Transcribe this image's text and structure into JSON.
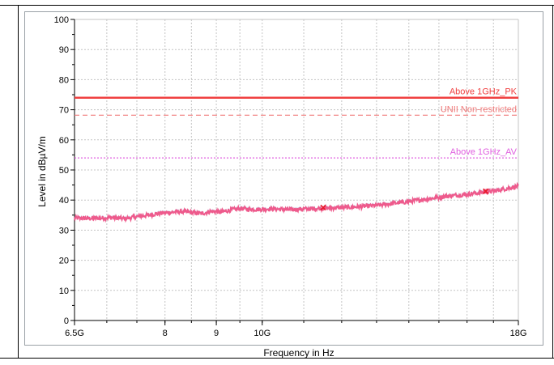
{
  "chart_data": {
    "type": "line",
    "xlabel": "Frequency in Hz",
    "ylabel": "Level in dBµV/m",
    "x_scale": "log",
    "xlim": [
      6.5,
      18
    ],
    "ylim": [
      0,
      100
    ],
    "x_ticks": [
      {
        "value": 6.5,
        "label": "6.5G"
      },
      {
        "value": 8,
        "label": "8"
      },
      {
        "value": 9,
        "label": "9"
      },
      {
        "value": 10,
        "label": "10G"
      },
      {
        "value": 18,
        "label": "18G"
      }
    ],
    "y_ticks": [
      0,
      10,
      20,
      30,
      40,
      50,
      60,
      70,
      80,
      90,
      100
    ],
    "grid": true,
    "limit_lines": [
      {
        "name": "Above 1GHz_PK",
        "value": 74,
        "style": "solid",
        "color": "#f04040"
      },
      {
        "name": "UNII Non-restricted",
        "value": 68.2,
        "style": "dashed",
        "color": "#f07878"
      },
      {
        "name": "Above 1GHz_AV",
        "value": 54,
        "style": "dotted",
        "color": "#e060e0"
      }
    ],
    "series": [
      {
        "color": "#ee5a8c",
        "x": [
          6.5,
          6.7,
          6.9,
          7.1,
          7.3,
          7.5,
          7.7,
          7.9,
          8.1,
          8.3,
          8.5,
          8.7,
          8.9,
          9.1,
          9.3,
          9.5,
          9.7,
          9.9,
          10.2,
          10.6,
          11.0,
          11.5,
          12.0,
          12.5,
          13.0,
          13.5,
          14.0,
          14.5,
          15.0,
          15.5,
          16.0,
          16.5,
          17.0,
          17.5,
          18.0
        ],
        "y": [
          34.0,
          33.9,
          34.0,
          34.2,
          33.8,
          34.5,
          35.0,
          35.6,
          35.9,
          36.2,
          35.9,
          35.5,
          36.3,
          36.0,
          36.7,
          37.2,
          37.0,
          36.9,
          37.1,
          36.8,
          37.0,
          37.3,
          37.5,
          37.8,
          38.2,
          38.9,
          39.5,
          40.2,
          40.9,
          41.5,
          41.9,
          42.5,
          43.0,
          43.8,
          44.6
        ]
      }
    ],
    "markers": [
      {
        "x": 11.5,
        "y": 37.5
      },
      {
        "x": 16.7,
        "y": 42.9
      }
    ]
  },
  "colors": {
    "frame_border": "#000000",
    "plot_border": "#9aa0a6",
    "grid": "#c4c4c4",
    "marker": "#e8192c"
  }
}
